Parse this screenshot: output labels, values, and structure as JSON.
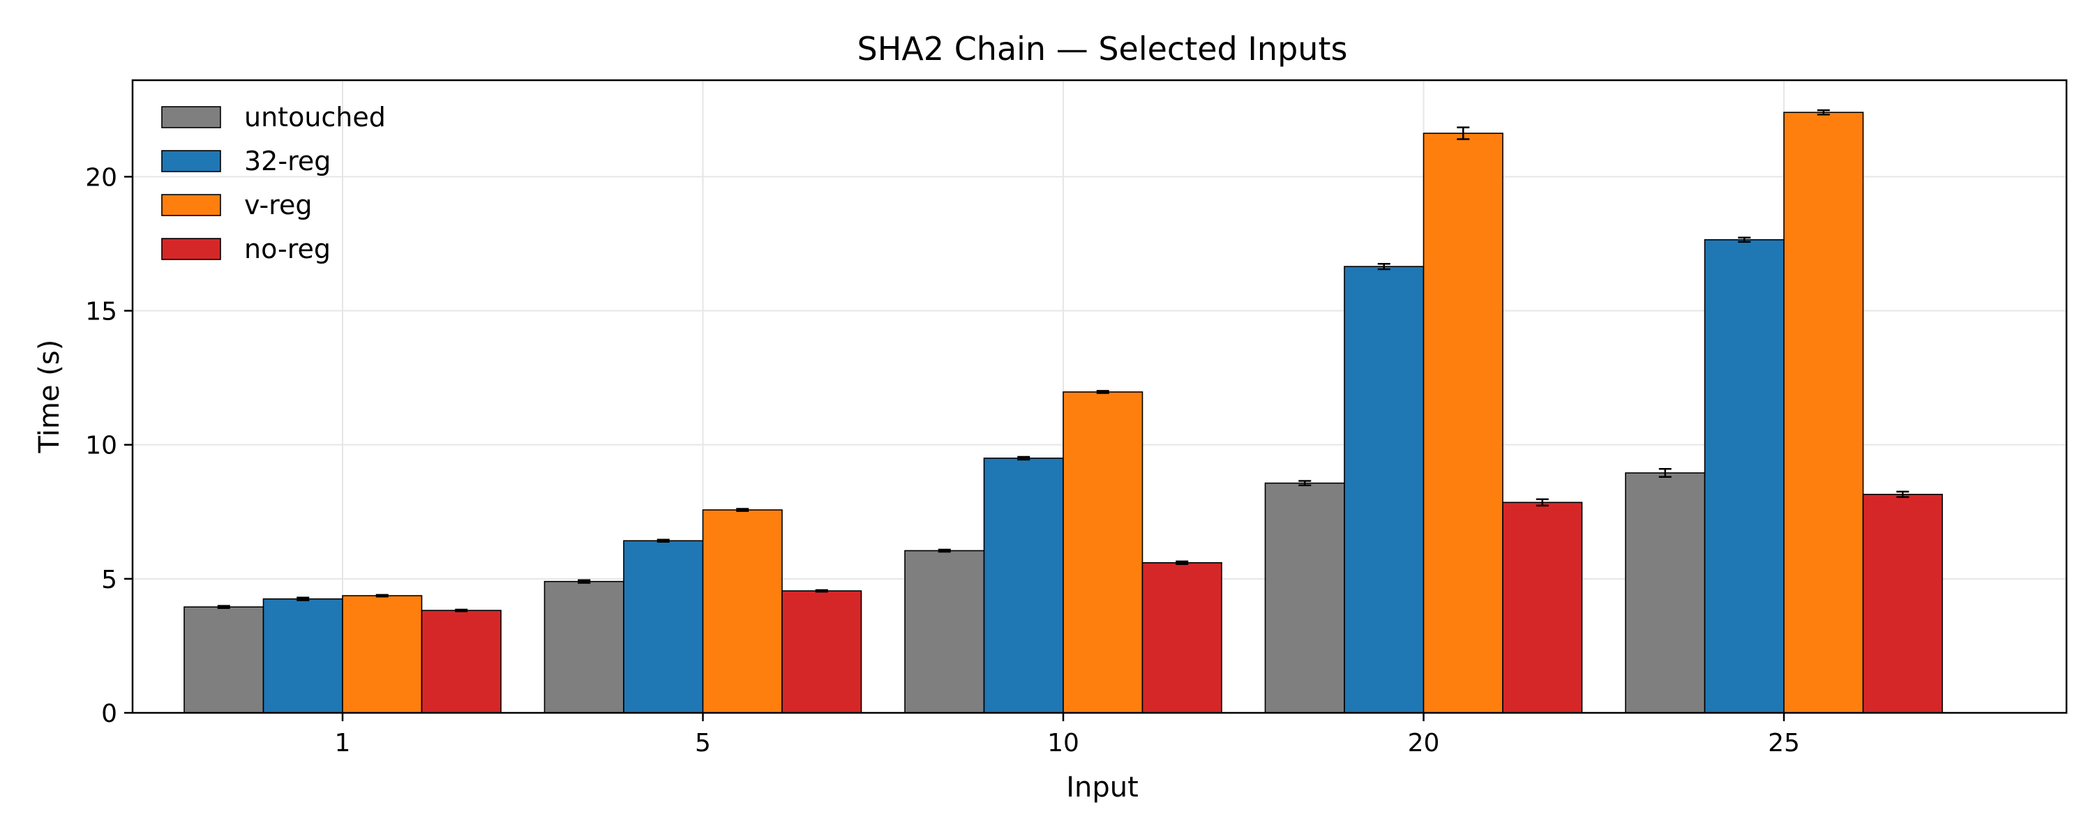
{
  "chart_data": {
    "type": "bar",
    "title": "SHA2 Chain — Selected Inputs",
    "xlabel": "Input",
    "ylabel": "Time (s)",
    "categories": [
      "1",
      "5",
      "10",
      "20",
      "25"
    ],
    "ylim": [
      0,
      23.6
    ],
    "yticks": [
      0,
      5,
      10,
      15,
      20
    ],
    "grid": true,
    "legend_position": "top-left",
    "series": [
      {
        "name": "untouched",
        "color": "#7f7f7f",
        "values": [
          3.95,
          4.9,
          6.05,
          8.57,
          8.95
        ],
        "errors": [
          0.04,
          0.05,
          0.04,
          0.08,
          0.15
        ]
      },
      {
        "name": "32-reg",
        "color": "#1f77b4",
        "values": [
          4.25,
          6.42,
          9.5,
          16.65,
          17.65
        ],
        "errors": [
          0.05,
          0.04,
          0.05,
          0.1,
          0.08
        ]
      },
      {
        "name": "v-reg",
        "color": "#ff7f0e",
        "values": [
          4.37,
          7.57,
          11.97,
          21.62,
          22.4
        ],
        "errors": [
          0.03,
          0.04,
          0.04,
          0.22,
          0.08
        ]
      },
      {
        "name": "no-reg",
        "color": "#d62728",
        "values": [
          3.82,
          4.55,
          5.6,
          7.85,
          8.15
        ],
        "errors": [
          0.03,
          0.03,
          0.05,
          0.12,
          0.1
        ]
      }
    ]
  }
}
